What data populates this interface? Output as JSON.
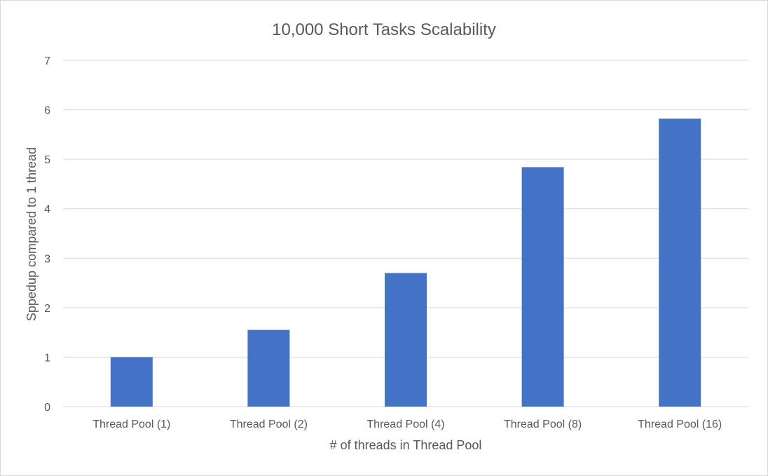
{
  "chart_data": {
    "type": "bar",
    "title": "10,000 Short Tasks Scalability",
    "xlabel": "# of threads in Thread Pool",
    "ylabel": "Sppedup compared to 1 thread",
    "categories": [
      "Thread Pool (1)",
      "Thread Pool (2)",
      "Thread Pool (4)",
      "Thread Pool (8)",
      "Thread Pool (16)"
    ],
    "series": [
      {
        "values": [
          1.0,
          1.55,
          2.7,
          4.84,
          5.82
        ]
      }
    ],
    "ylim": [
      0,
      7
    ],
    "yticks": [
      "0",
      "1",
      "2",
      "3",
      "4",
      "5",
      "6",
      "7"
    ],
    "grid": true,
    "legend": "none",
    "colors": {
      "bar": "#4472c4",
      "grid": "#d9d9d9",
      "text": "#595959"
    }
  }
}
